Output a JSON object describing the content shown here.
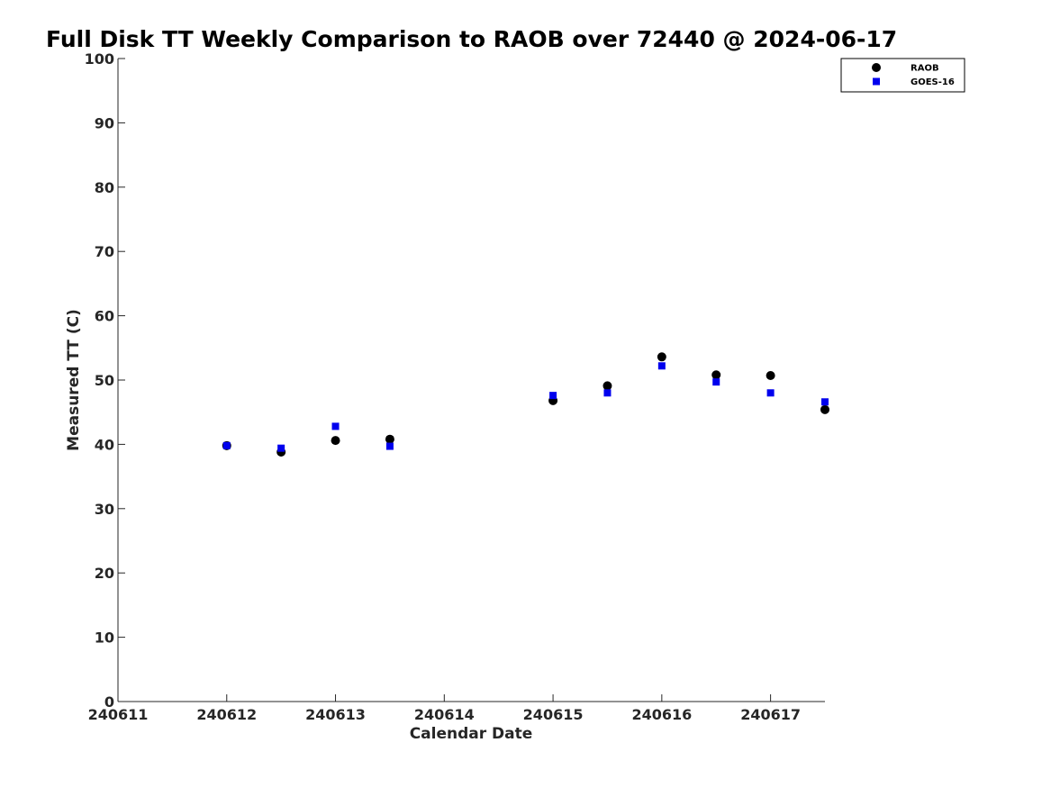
{
  "chart_data": {
    "type": "scatter",
    "title": "Full Disk TT Weekly Comparison to RAOB over 72440 @ 2024-06-17",
    "xlabel": "Calendar Date",
    "ylabel": "Measured TT (C)",
    "xlim": [
      240611,
      240617.5
    ],
    "ylim": [
      0,
      100
    ],
    "x_ticks": [
      240611,
      240612,
      240613,
      240614,
      240615,
      240616,
      240617
    ],
    "x_tick_labels": [
      "240611",
      "240612",
      "240613",
      "240614",
      "240615",
      "240616",
      "240617"
    ],
    "y_ticks": [
      0,
      10,
      20,
      30,
      40,
      50,
      60,
      70,
      80,
      90,
      100
    ],
    "y_tick_labels": [
      "0",
      "10",
      "20",
      "30",
      "40",
      "50",
      "60",
      "70",
      "80",
      "90",
      "100"
    ],
    "grid": false,
    "legend_position": "top-right",
    "series": [
      {
        "name": "RAOB",
        "marker": "circle",
        "color": "#000000",
        "x": [
          240612,
          240612.5,
          240613,
          240613.5,
          240615,
          240615.5,
          240616,
          240616.5,
          240617,
          240617.5
        ],
        "y": [
          39.8,
          38.8,
          40.6,
          40.8,
          46.8,
          49.1,
          53.6,
          50.8,
          50.7,
          45.4
        ]
      },
      {
        "name": "GOES-16",
        "marker": "square",
        "color": "#0000ee",
        "x": [
          240612,
          240612.5,
          240613,
          240613.5,
          240615,
          240615.5,
          240616,
          240616.5,
          240617,
          240617.5
        ],
        "y": [
          39.8,
          39.4,
          42.8,
          39.7,
          47.6,
          48.0,
          52.2,
          49.7,
          48.0,
          46.6
        ]
      }
    ]
  }
}
